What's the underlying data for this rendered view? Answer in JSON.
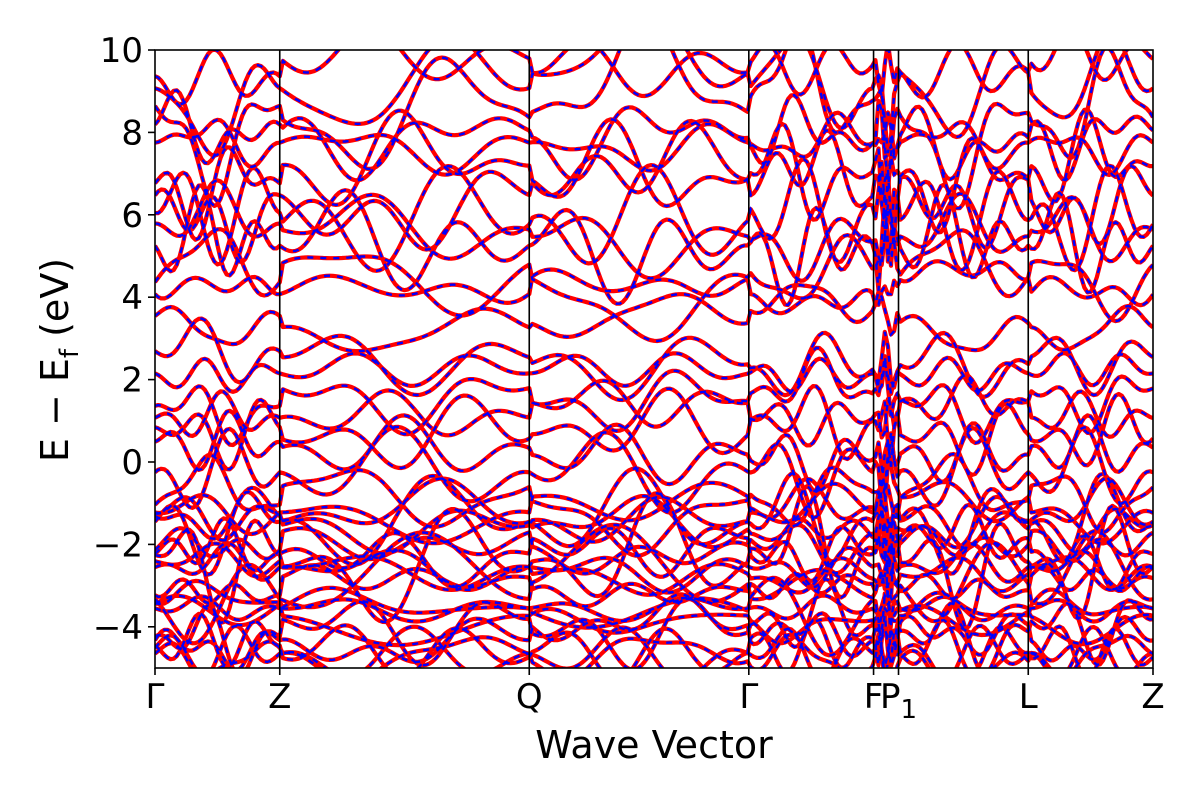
{
  "chart_data": {
    "type": "line",
    "title": "",
    "xlabel": "Wave Vector",
    "ylabel": "E − E",
    "ylabel_subscript": "f",
    "ylabel_unit": " (eV)",
    "ylim": [
      -5,
      10
    ],
    "yticks": [
      -4,
      -2,
      0,
      2,
      4,
      6,
      8,
      10
    ],
    "ytick_labels": [
      "−4",
      "−2",
      "0",
      "2",
      "4",
      "6",
      "8",
      "10"
    ],
    "xlim": [
      0,
      4.0
    ],
    "kpoints": [
      {
        "label": "Γ",
        "x": 0.0
      },
      {
        "label": "Z",
        "x": 0.5
      },
      {
        "label": "Q",
        "x": 1.5
      },
      {
        "label": "Γ",
        "x": 2.38
      },
      {
        "label": "F",
        "x": 2.88
      },
      {
        "label": "P",
        "sub": "1",
        "x": 2.98
      },
      {
        "label": "L",
        "x": 3.5
      },
      {
        "label": "Z",
        "x": 4.0
      }
    ],
    "grid": false,
    "legend": "none",
    "series": [
      {
        "style": "solid",
        "color": "#ff0000",
        "bands": "computed"
      },
      {
        "style": "dashed",
        "color": "#0000ff",
        "bands": "computed"
      }
    ],
    "band_energies_at_gamma": [
      -4.9,
      -4.7,
      -4.5,
      -4.2,
      -4.0,
      -3.8,
      -3.6,
      -3.5,
      -3.2,
      -3.0,
      -2.8,
      -2.6,
      -2.3,
      -2.1,
      -1.9,
      -1.7,
      -1.5,
      -1.3,
      -1.1,
      -0.8,
      -0.5,
      0.3,
      0.8,
      1.2,
      1.6,
      1.9,
      2.5,
      3.5,
      4.2,
      4.6,
      5.0,
      5.6,
      6.0,
      6.6,
      7.0,
      7.5,
      8.0,
      8.6,
      9.2,
      9.6
    ]
  }
}
